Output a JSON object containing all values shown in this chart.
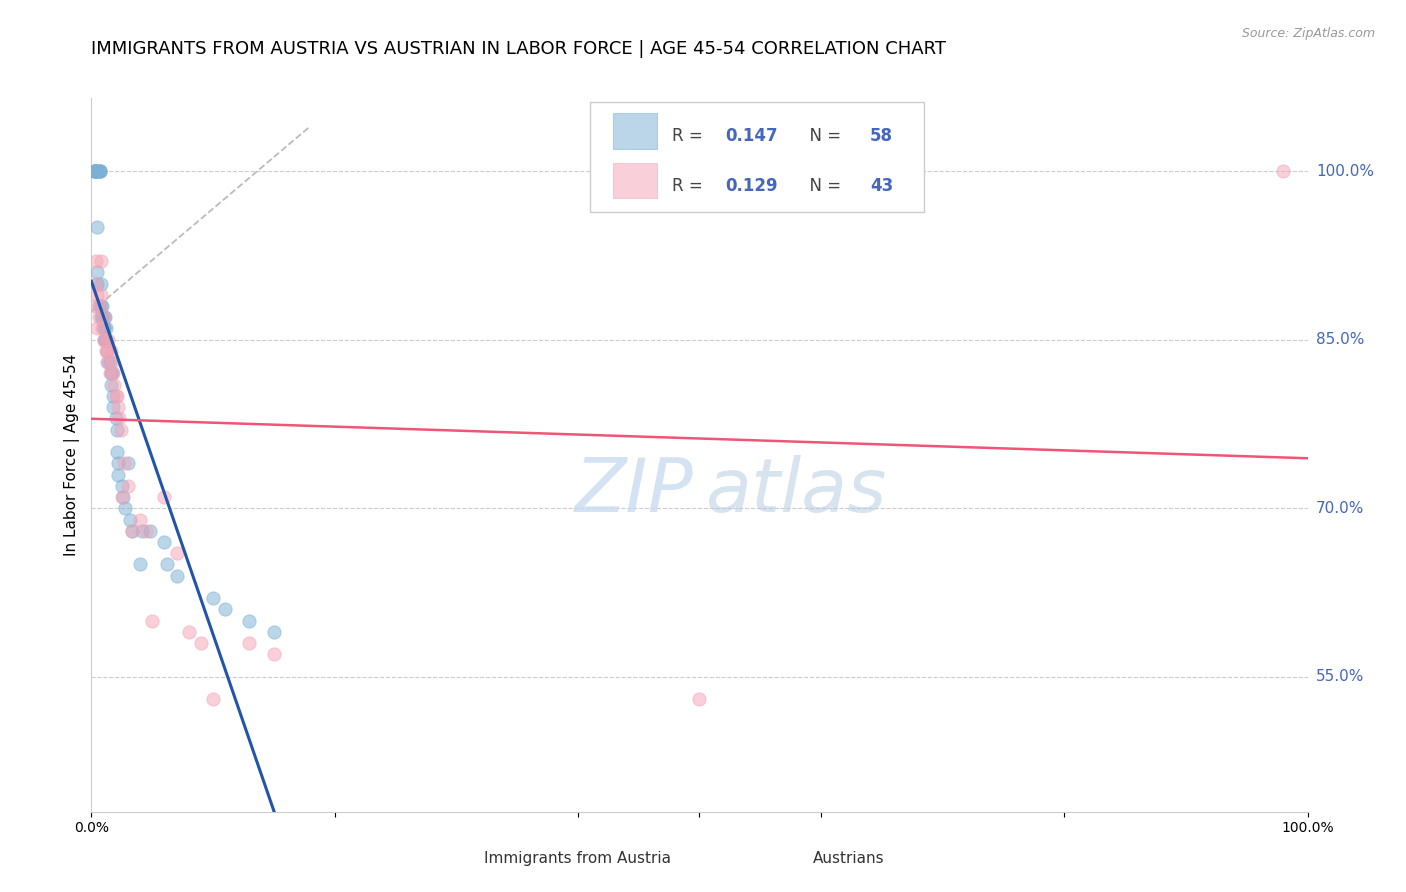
{
  "title": "IMMIGRANTS FROM AUSTRIA VS AUSTRIAN IN LABOR FORCE | AGE 45-54 CORRELATION CHART",
  "source": "Source: ZipAtlas.com",
  "ylabel": "In Labor Force | Age 45-54",
  "right_ytick_labels": [
    "100.0%",
    "85.0%",
    "70.0%",
    "55.0%"
  ],
  "right_ytick_values": [
    1.0,
    0.85,
    0.7,
    0.55
  ],
  "legend1_label": "Immigrants from Austria",
  "legend2_label": "Austrians",
  "R_blue": 0.147,
  "N_blue": 58,
  "R_pink": 0.129,
  "N_pink": 43,
  "blue_color": "#7BAFD4",
  "pink_color": "#F4A3B5",
  "right_tick_color": "#4466BB",
  "grid_color": "#CCCCCC",
  "background_color": "#FFFFFF",
  "blue_scatter_x": [
    0.002,
    0.003,
    0.003,
    0.003,
    0.003,
    0.004,
    0.004,
    0.004,
    0.005,
    0.005,
    0.005,
    0.006,
    0.006,
    0.007,
    0.007,
    0.007,
    0.008,
    0.008,
    0.008,
    0.009,
    0.009,
    0.01,
    0.01,
    0.01,
    0.01,
    0.011,
    0.011,
    0.012,
    0.012,
    0.013,
    0.014,
    0.015,
    0.016,
    0.016,
    0.017,
    0.018,
    0.018,
    0.02,
    0.021,
    0.021,
    0.022,
    0.022,
    0.025,
    0.026,
    0.028,
    0.03,
    0.032,
    0.033,
    0.04,
    0.042,
    0.048,
    0.06,
    0.062,
    0.07,
    0.1,
    0.11,
    0.13,
    0.15
  ],
  "blue_scatter_y": [
    1.0,
    1.0,
    1.0,
    1.0,
    1.0,
    1.0,
    1.0,
    1.0,
    0.95,
    0.91,
    0.9,
    1.0,
    0.88,
    1.0,
    1.0,
    1.0,
    0.9,
    0.88,
    0.87,
    0.88,
    0.87,
    0.87,
    0.86,
    0.86,
    0.85,
    0.85,
    0.87,
    0.86,
    0.85,
    0.84,
    0.83,
    0.83,
    0.82,
    0.81,
    0.82,
    0.8,
    0.79,
    0.78,
    0.77,
    0.75,
    0.74,
    0.73,
    0.72,
    0.71,
    0.7,
    0.74,
    0.69,
    0.68,
    0.65,
    0.68,
    0.68,
    0.67,
    0.65,
    0.64,
    0.62,
    0.61,
    0.6,
    0.59
  ],
  "pink_scatter_x": [
    0.003,
    0.004,
    0.005,
    0.005,
    0.006,
    0.007,
    0.008,
    0.008,
    0.009,
    0.01,
    0.01,
    0.011,
    0.012,
    0.013,
    0.013,
    0.014,
    0.015,
    0.016,
    0.017,
    0.018,
    0.019,
    0.02,
    0.021,
    0.022,
    0.023,
    0.024,
    0.025,
    0.027,
    0.03,
    0.033,
    0.04,
    0.045,
    0.05,
    0.06,
    0.07,
    0.08,
    0.09,
    0.1,
    0.13,
    0.15,
    0.5,
    0.98,
    0.004
  ],
  "pink_scatter_y": [
    0.88,
    0.9,
    0.89,
    0.86,
    0.87,
    0.88,
    0.89,
    0.92,
    0.86,
    0.87,
    0.85,
    0.85,
    0.84,
    0.83,
    0.84,
    0.85,
    0.82,
    0.84,
    0.83,
    0.82,
    0.81,
    0.8,
    0.8,
    0.79,
    0.78,
    0.77,
    0.71,
    0.74,
    0.72,
    0.68,
    0.69,
    0.68,
    0.6,
    0.71,
    0.66,
    0.59,
    0.58,
    0.53,
    0.58,
    0.57,
    0.53,
    1.0,
    0.92
  ],
  "xlim": [
    0.0,
    1.0
  ],
  "ylim": [
    0.43,
    1.065
  ]
}
